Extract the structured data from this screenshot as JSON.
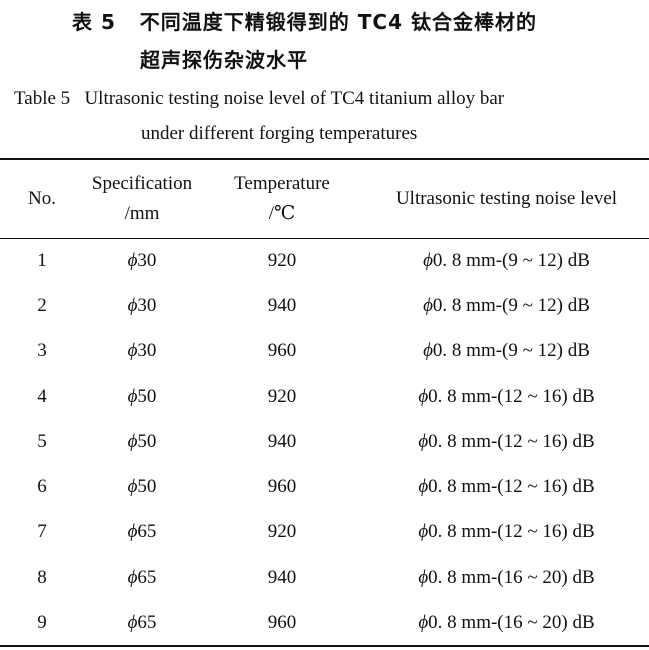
{
  "title_cn": {
    "label": "表 5",
    "line1": "不同温度下精锻得到的 TC4 钛合金棒材的",
    "line2": "超声探伤杂波水平"
  },
  "title_en": {
    "label": "Table 5",
    "line1": "Ultrasonic testing noise level of TC4 titanium alloy bar",
    "line2": "under different forging temperatures"
  },
  "table": {
    "headers": [
      {
        "line1": "No.",
        "line2": ""
      },
      {
        "line1": "Specification",
        "line2": "/mm"
      },
      {
        "line1": "Temperature",
        "line2": "/℃"
      },
      {
        "line1": "Ultrasonic testing noise level",
        "line2": ""
      }
    ],
    "rows": [
      [
        "1",
        "30",
        "920",
        "0. 8 mm-(9 ~ 12) dB"
      ],
      [
        "2",
        "30",
        "940",
        "0. 8 mm-(9 ~ 12) dB"
      ],
      [
        "3",
        "30",
        "960",
        "0. 8 mm-(9 ~ 12) dB"
      ],
      [
        "4",
        "50",
        "920",
        "0. 8 mm-(12 ~ 16) dB"
      ],
      [
        "5",
        "50",
        "940",
        "0. 8 mm-(12 ~ 16) dB"
      ],
      [
        "6",
        "50",
        "960",
        "0. 8 mm-(12 ~ 16) dB"
      ],
      [
        "7",
        "65",
        "920",
        "0. 8 mm-(12 ~ 16) dB"
      ],
      [
        "8",
        "65",
        "940",
        "0. 8 mm-(16 ~ 20) dB"
      ],
      [
        "9",
        "65",
        "960",
        "0. 8 mm-(16 ~ 20) dB"
      ]
    ],
    "phi_symbol": "ϕ"
  }
}
